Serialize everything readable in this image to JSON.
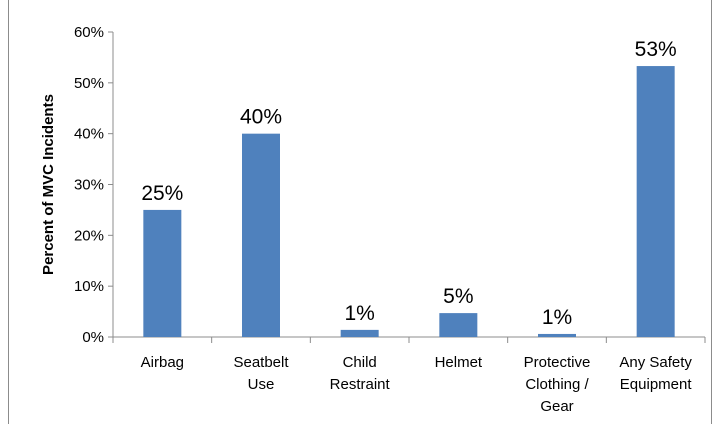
{
  "chart_data": {
    "type": "bar",
    "title": "",
    "xlabel": "",
    "ylabel": "Percent of MVC Incidents",
    "ylim": [
      0,
      60
    ],
    "ytick_step": 10,
    "ytick_labels": [
      "0%",
      "10%",
      "20%",
      "30%",
      "40%",
      "50%",
      "60%"
    ],
    "grid": false,
    "legend": "none",
    "categories": [
      [
        "Airbag"
      ],
      [
        "Seatbelt",
        "Use"
      ],
      [
        "Child",
        "Restraint"
      ],
      [
        "Helmet"
      ],
      [
        "Protective",
        "Clothing /",
        "Gear"
      ],
      [
        "Any Safety",
        "Equipment"
      ]
    ],
    "values": [
      25,
      40,
      1.4,
      4.7,
      0.6,
      53.3
    ],
    "data_labels": [
      "25%",
      "40%",
      "1%",
      "5%",
      "1%",
      "53%"
    ],
    "bar_color": "#4f81bd"
  }
}
